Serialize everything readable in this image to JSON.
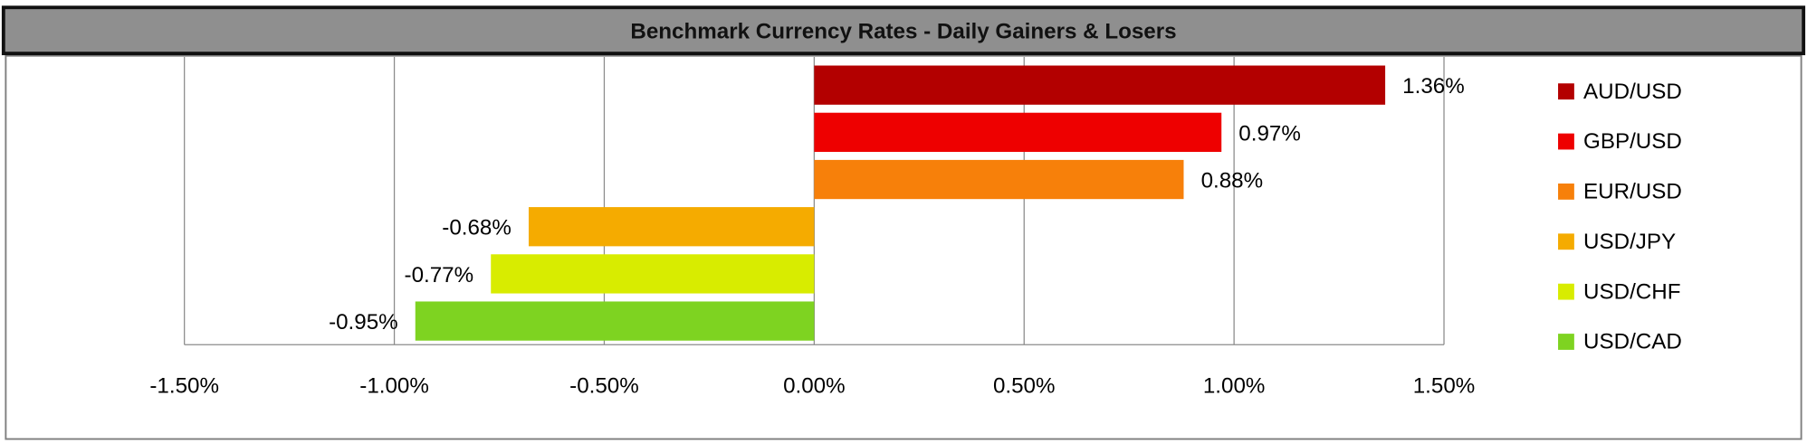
{
  "chart_data": {
    "type": "bar",
    "orientation": "horizontal",
    "title": "Benchmark Currency Rates - Daily Gainers & Losers",
    "categories": [
      "AUD/USD",
      "GBP/USD",
      "EUR/USD",
      "USD/JPY",
      "USD/CHF",
      "USD/CAD"
    ],
    "values": [
      1.36,
      0.97,
      0.88,
      -0.68,
      -0.77,
      -0.95
    ],
    "value_labels": [
      "1.36%",
      "0.97%",
      "0.88%",
      "-0.68%",
      "-0.77%",
      "-0.95%"
    ],
    "colors": [
      "#b30000",
      "#ee0000",
      "#f7800a",
      "#f5ab00",
      "#d8ec00",
      "#7ed321"
    ],
    "xlim": [
      -1.5,
      1.5
    ],
    "xticks": [
      {
        "value": -1.5,
        "label": "-1.50%"
      },
      {
        "value": -1,
        "label": "-1.00%"
      },
      {
        "value": -0.5,
        "label": "-0.50%"
      },
      {
        "value": 0,
        "label": "0.00%"
      },
      {
        "value": 0.5,
        "label": "0.50%"
      },
      {
        "value": 1,
        "label": "1.00%"
      },
      {
        "value": 1.5,
        "label": "1.50%"
      }
    ],
    "grid": true,
    "legend": "right"
  }
}
